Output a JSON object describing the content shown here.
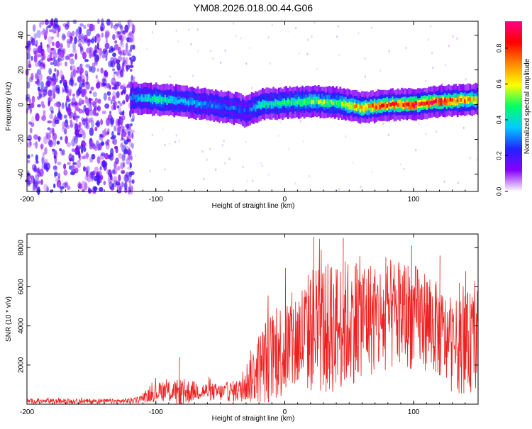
{
  "title": "YM08.2026.018.00.44.G06",
  "chart_data": [
    {
      "type": "heatmap",
      "title": "YM08.2026.018.00.44.G06",
      "xlabel": "Height of straight line (km)",
      "ylabel": "Frequency (Hz)",
      "xlim": [
        -200,
        150
      ],
      "ylim": [
        -50,
        48
      ],
      "xticks": [
        "-200",
        "-100",
        "0",
        "100"
      ],
      "yticks": [
        "-40",
        "-20",
        "0",
        "20",
        "40"
      ],
      "colorbar": {
        "label": "Normalized spectral amplitude",
        "range": [
          0,
          0.95
        ],
        "ticks": [
          "0.0",
          "0.2",
          "0.4",
          "0.6",
          "0.8"
        ],
        "colors": [
          "#ffffff",
          "#8800ff",
          "#2222ff",
          "#00ccff",
          "#00ff66",
          "#ffff00",
          "#ff8800",
          "#ff0000",
          "#ff0088"
        ]
      },
      "noise_region_x": [
        -200,
        -117
      ],
      "ridge": {
        "x": [
          -120,
          -100,
          -80,
          -60,
          -40,
          -30,
          -20,
          0,
          20,
          40,
          60,
          80,
          100,
          120,
          150
        ],
        "y": [
          4,
          3,
          2,
          0,
          -2,
          -4,
          0,
          1,
          2,
          1,
          -2,
          0,
          0,
          2,
          3
        ],
        "amplitude": [
          0.3,
          0.45,
          0.35,
          0.3,
          0.3,
          0.25,
          0.4,
          0.45,
          0.55,
          0.5,
          0.7,
          0.75,
          0.8,
          0.85,
          0.6
        ]
      }
    },
    {
      "type": "line",
      "xlabel": "Height of straight line (km)",
      "ylabel": "SNR (10 * v/v)",
      "xlim": [
        -200,
        150
      ],
      "ylim": [
        0,
        8700
      ],
      "xticks": [
        "-200",
        "-100",
        "0",
        "100"
      ],
      "yticks": [
        "2000",
        "4000",
        "6000",
        "8000"
      ],
      "color": "#ee2020",
      "envelope": {
        "x": [
          -200,
          -130,
          -115,
          -105,
          -95,
          -85,
          -80,
          -70,
          -50,
          -35,
          -25,
          -15,
          -5,
          5,
          15,
          25,
          35,
          50,
          60,
          75,
          90,
          100,
          110,
          120,
          130,
          140,
          150
        ],
        "base": [
          150,
          150,
          200,
          450,
          700,
          600,
          550,
          700,
          600,
          700,
          1500,
          2200,
          2700,
          3000,
          3500,
          4000,
          3800,
          4200,
          4500,
          4300,
          4700,
          4500,
          4300,
          3700,
          2900,
          3100,
          3300
        ],
        "spread": [
          120,
          120,
          150,
          350,
          550,
          600,
          800,
          500,
          450,
          600,
          1500,
          2200,
          2500,
          2700,
          3000,
          3500,
          3400,
          3300,
          3100,
          2900,
          2900,
          2700,
          2600,
          2400,
          2300,
          2600,
          2600
        ]
      },
      "peaks": {
        "x": [
          -82,
          22,
          36,
          45,
          55,
          78,
          98,
          120,
          135,
          140
        ],
        "y": [
          2400,
          8550,
          7000,
          8500,
          7200,
          7500,
          8100,
          7600,
          6200,
          6800
        ]
      }
    }
  ]
}
